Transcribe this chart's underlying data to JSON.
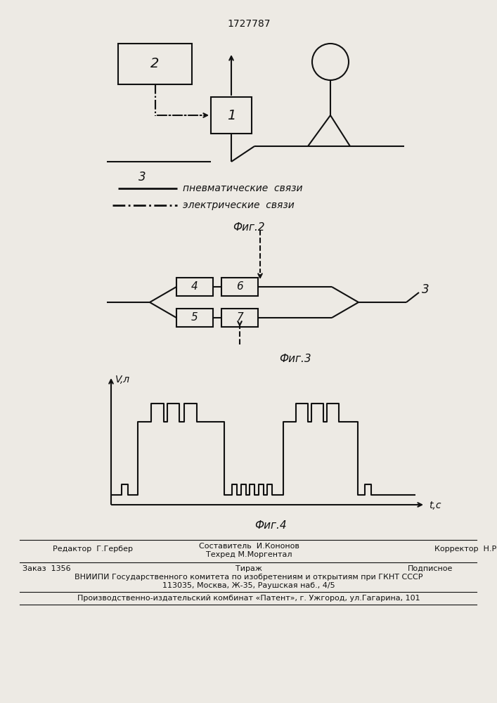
{
  "patent_number": "1727787",
  "bg_color": "#edeae4",
  "line_color": "#111111",
  "fig1_label": "Фиг.2",
  "fig2_label": "Фиг.3",
  "fig3_label": "Фиг.4",
  "legend_pneumatic": "пневматические  связи",
  "legend_electric": "электрические  связи",
  "ylabel": "V,л",
  "xlabel": "t,c",
  "footer_editor": "Редактор  Г.Гербер",
  "footer_composer": "Составитель  И.Кононов",
  "footer_techedit": "Техред М.Моргентал",
  "footer_corrector": "Корректор  Н.Ревская",
  "footer_order": "Заказ  1356",
  "footer_tirage": "Тираж",
  "footer_podpisnoe": "Подписное",
  "footer_vniipki": "ВНИИПИ Государственного комитета по изобретениям и открытиям при ГКНТ СССР",
  "footer_address": "113035, Москва, Ж-35, Раушская наб., 4/5",
  "footer_production": "Производственно-издательский комбинат «Патент», г. Ужгород, ул.Гагарина, 101"
}
